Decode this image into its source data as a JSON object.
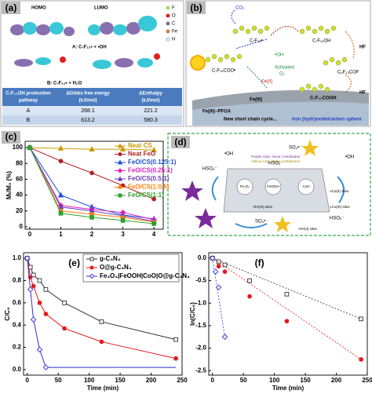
{
  "panel_a": {
    "label": "(a)",
    "homo": "HOMO",
    "lumo": "LUMO",
    "pathway_a": "A: C₇F₁₅• + •OH",
    "pathway_b": "B: C₇F₁₅• + H₂O",
    "legend": [
      "F",
      "O",
      "C",
      "Fe",
      "H"
    ],
    "table": {
      "header": [
        [
          "C₇F₁₅OH production",
          "pathway"
        ],
        [
          "ΔGibbs free energy",
          "(kJ/mol)"
        ],
        [
          "ΔEnthalpy",
          "(kJ/mol)"
        ]
      ],
      "rows": [
        [
          "A",
          268.1,
          221.2
        ],
        [
          "B",
          613.2,
          580.3
        ]
      ]
    }
  },
  "panel_b": {
    "label": "(b)",
    "texts": [
      "CO₂",
      "C₇F₁₅•",
      "C₇F₁₅OH",
      "C₇F₁₅COO•",
      "•OH",
      "Activated",
      "O₂",
      "Fe(II)",
      "Fe(III)",
      "Fe(III)−PFOA",
      "New short chain cycle...",
      "C₆F₁₃COF",
      "HF",
      "HF",
      "C₇F₁₅COOH",
      "Iron (hydr)oxide/carbon sphere"
    ]
  },
  "panel_d": {
    "label": "(d)",
    "texts": [
      "Purple color: minor contribution",
      "Yellow color: major contribution",
      "Fe₃O₄",
      "FeOOH",
      "CoO",
      "≡Fe(III) sites",
      "≡Fe(II) sites",
      "≡Co(II) sites",
      "≡Co(III) sites",
      "HSO₅⁻",
      "HSO₅⁻",
      "HSO₅⁻",
      "SO₄•⁻",
      "SO₄•⁻",
      "•OH",
      "•OH"
    ]
  },
  "chart_data": [
    {
      "type": "line",
      "panel_label": "(c)",
      "ylabel": "Mₜ/M₀ (%)",
      "x": [
        0,
        1,
        2,
        3,
        4
      ],
      "xlim": [
        -0.15,
        4.3
      ],
      "xticks": [
        0,
        1,
        2,
        3,
        4
      ],
      "ylim": [
        -3,
        108
      ],
      "yticks": [
        0,
        20,
        40,
        60,
        80,
        100
      ],
      "legend": "upper right",
      "series": [
        {
          "name": "Neat CS",
          "color": "#c89b00",
          "marker": "triangle",
          "filled": true,
          "values": [
            100,
            99,
            98,
            98,
            97
          ]
        },
        {
          "name": "Neat FeO",
          "color": "#b22222",
          "marker": "circle",
          "filled": true,
          "values": [
            100,
            83,
            68,
            52,
            35
          ]
        },
        {
          "name": "FeO/CS(0.125:1)",
          "color": "#1f4fd8",
          "marker": "triangle",
          "filled": true,
          "values": [
            100,
            40,
            25,
            15,
            10
          ]
        },
        {
          "name": "FeO/CS(0.25:1)",
          "color": "#e020c0",
          "marker": "diamond",
          "filled": true,
          "values": [
            100,
            27,
            22,
            18,
            9
          ]
        },
        {
          "name": "FeO/CS(0.5:1)",
          "color": "#6a3db8",
          "marker": "triangle",
          "filled": true,
          "values": [
            100,
            25,
            20,
            14,
            7
          ]
        },
        {
          "name": "FeO/CS(1:0.5)",
          "color": "#ff7f0e",
          "marker": "circle",
          "filled": true,
          "values": [
            100,
            20,
            16,
            12,
            6
          ]
        },
        {
          "name": "FeO/CS(1:1)",
          "color": "#2ca02c",
          "marker": "square",
          "filled": true,
          "values": [
            100,
            17,
            12,
            8,
            4
          ]
        }
      ]
    },
    {
      "type": "line",
      "panel_label": "(e)",
      "xlabel": "Time (min)",
      "ylabel": "C/C₀",
      "x": [
        0,
        5,
        10,
        20,
        30,
        60,
        120,
        240
      ],
      "xlim": [
        -6,
        250
      ],
      "xticks": [
        0,
        50,
        100,
        150,
        200,
        250
      ],
      "ylim": [
        -0.05,
        1.05
      ],
      "yticks": [
        {
          "value": 0,
          "label": "0.0"
        },
        0.2,
        0.4,
        0.6,
        0.8,
        {
          "value": 1,
          "label": "1.0"
        }
      ],
      "legend": "upper right",
      "series": [
        {
          "name": "g-C₃N₄",
          "color": "#333333",
          "marker": "square",
          "filled": false,
          "values": [
            1.0,
            0.92,
            0.85,
            0.8,
            0.72,
            0.6,
            0.43,
            0.27
          ]
        },
        {
          "name": "O@g-C₃N₄",
          "color": "#e31a1c",
          "marker": "circle",
          "filled": true,
          "values": [
            1.0,
            0.83,
            0.75,
            0.6,
            0.5,
            0.37,
            0.25,
            0.1
          ]
        },
        {
          "name": "Fe₃O₄|FeOOH|CoO|O@g-C₃N₄",
          "color": "#3030d0",
          "marker": "diamond",
          "filled": false,
          "values": [
            1.0,
            0.72,
            0.45,
            0.18,
            0.02,
            0.02,
            0.02,
            0.02
          ]
        }
      ]
    },
    {
      "type": "scatter",
      "panel_label": "(f)",
      "xlabel": "Time (min)",
      "ylabel": "ln(C/C₀)",
      "fit": true,
      "xlim": [
        -6,
        250
      ],
      "xticks": [
        0,
        50,
        100,
        150,
        200,
        250
      ],
      "ylim": [
        -2.6,
        0.12
      ],
      "yticks": [
        {
          "value": 0,
          "label": "0.0"
        },
        -0.5,
        {
          "value": -1,
          "label": "-1.0"
        },
        -1.5,
        {
          "value": -2,
          "label": "-2.0"
        },
        -2.5
      ],
      "series": [
        {
          "name": "g-C₃N₄",
          "color": "#333333",
          "marker": "square",
          "filled": false,
          "x": [
            0,
            10,
            20,
            60,
            120,
            240
          ],
          "values": [
            0,
            -0.08,
            -0.15,
            -0.5,
            -0.8,
            -1.35
          ]
        },
        {
          "name": "O@g-C₃N₄",
          "color": "#e31a1c",
          "marker": "circle",
          "filled": true,
          "x": [
            0,
            10,
            20,
            60,
            120,
            240
          ],
          "values": [
            0,
            -0.18,
            -0.3,
            -0.85,
            -1.4,
            -2.25
          ]
        },
        {
          "name": "Fe₃O₄|FeOOH|CoO|O@g-C₃N₄",
          "color": "#3030d0",
          "marker": "diamond",
          "filled": false,
          "x": [
            0,
            5,
            10,
            20
          ],
          "values": [
            0,
            -0.3,
            -0.65,
            -1.75
          ]
        }
      ]
    }
  ]
}
